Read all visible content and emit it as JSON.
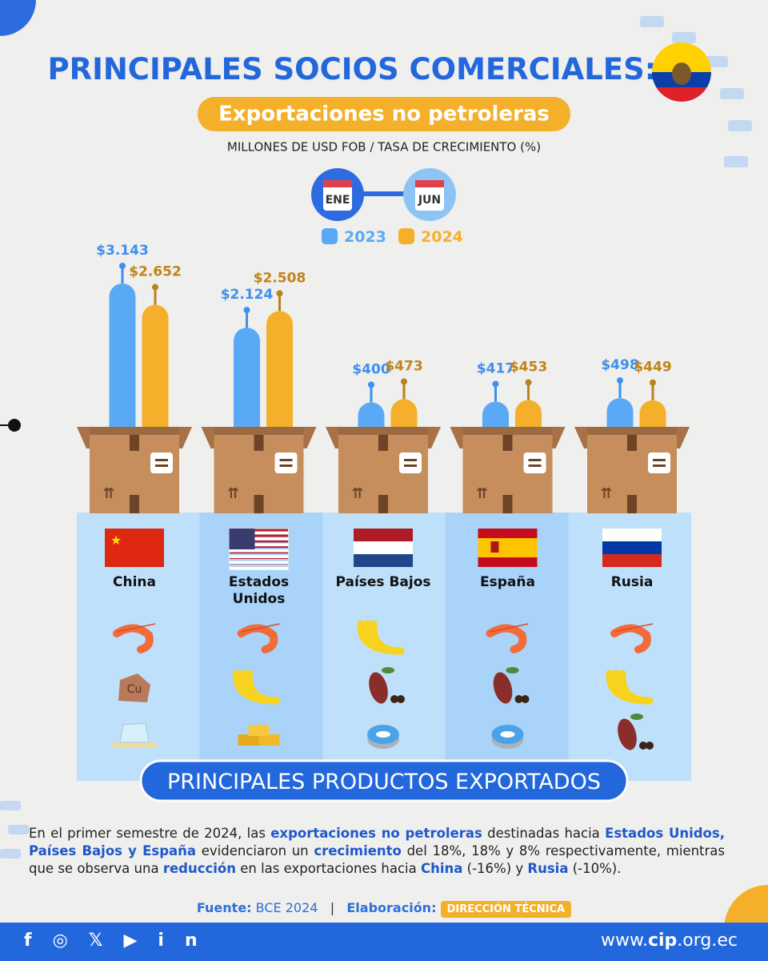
{
  "chart_data": {
    "type": "bar",
    "title": "PRINCIPALES SOCIOS COMERCIALES:",
    "subtitle": "Exportaciones no petroleras",
    "unit_note": "MILLONES DE USD FOB / TASA DE CRECIMIENTO (%)",
    "period": {
      "start": "ENE",
      "end": "JUN"
    },
    "categories": [
      "China",
      "Estados Unidos",
      "Países Bajos",
      "España",
      "Rusia"
    ],
    "series": [
      {
        "name": "2023",
        "color": "#5aa9f7",
        "values": [
          3143,
          2124,
          400,
          417,
          498
        ],
        "value_labels": [
          "$3.143",
          "$2.124",
          "$400",
          "$417",
          "$498"
        ]
      },
      {
        "name": "2024",
        "color": "#f5b02b",
        "values": [
          2652,
          2508,
          473,
          453,
          449
        ],
        "value_labels": [
          "$2.652",
          "$2.508",
          "$473",
          "$453",
          "$449"
        ]
      }
    ]
  },
  "products_title": "PRINCIPALES PRODUCTOS EXPORTADOS",
  "copper_label": "Cu",
  "summary": [
    {
      "text": "En el primer semestre de 2024, las ",
      "bold": false
    },
    {
      "text": "exportaciones no petroleras",
      "bold": true
    },
    {
      "text": " destinadas hacia  ",
      "bold": false
    },
    {
      "text": "Estados Unidos, Países Bajos y España",
      "bold": true
    },
    {
      "text": " evidenciaron un ",
      "bold": false
    },
    {
      "text": "crecimiento",
      "bold": true
    },
    {
      "text": " del 18%, 18% y 8% respectivamente, mientras que se observa una ",
      "bold": false
    },
    {
      "text": "reducción",
      "bold": true
    },
    {
      "text": " en las exportaciones hacia ",
      "bold": false
    },
    {
      "text": "China",
      "bold": true
    },
    {
      "text": " (-16%) y ",
      "bold": false
    },
    {
      "text": "Rusia",
      "bold": true
    },
    {
      "text": " (-10%).",
      "bold": false
    }
  ],
  "source": {
    "label": "Fuente:",
    "value": "BCE 2024",
    "separator": "|",
    "credit_label": "Elaboración:",
    "credit": "DIRECCIÓN TÉCNICA"
  },
  "website": {
    "prefix": "www.",
    "name": "cip",
    "suffix": ".org.ec"
  }
}
